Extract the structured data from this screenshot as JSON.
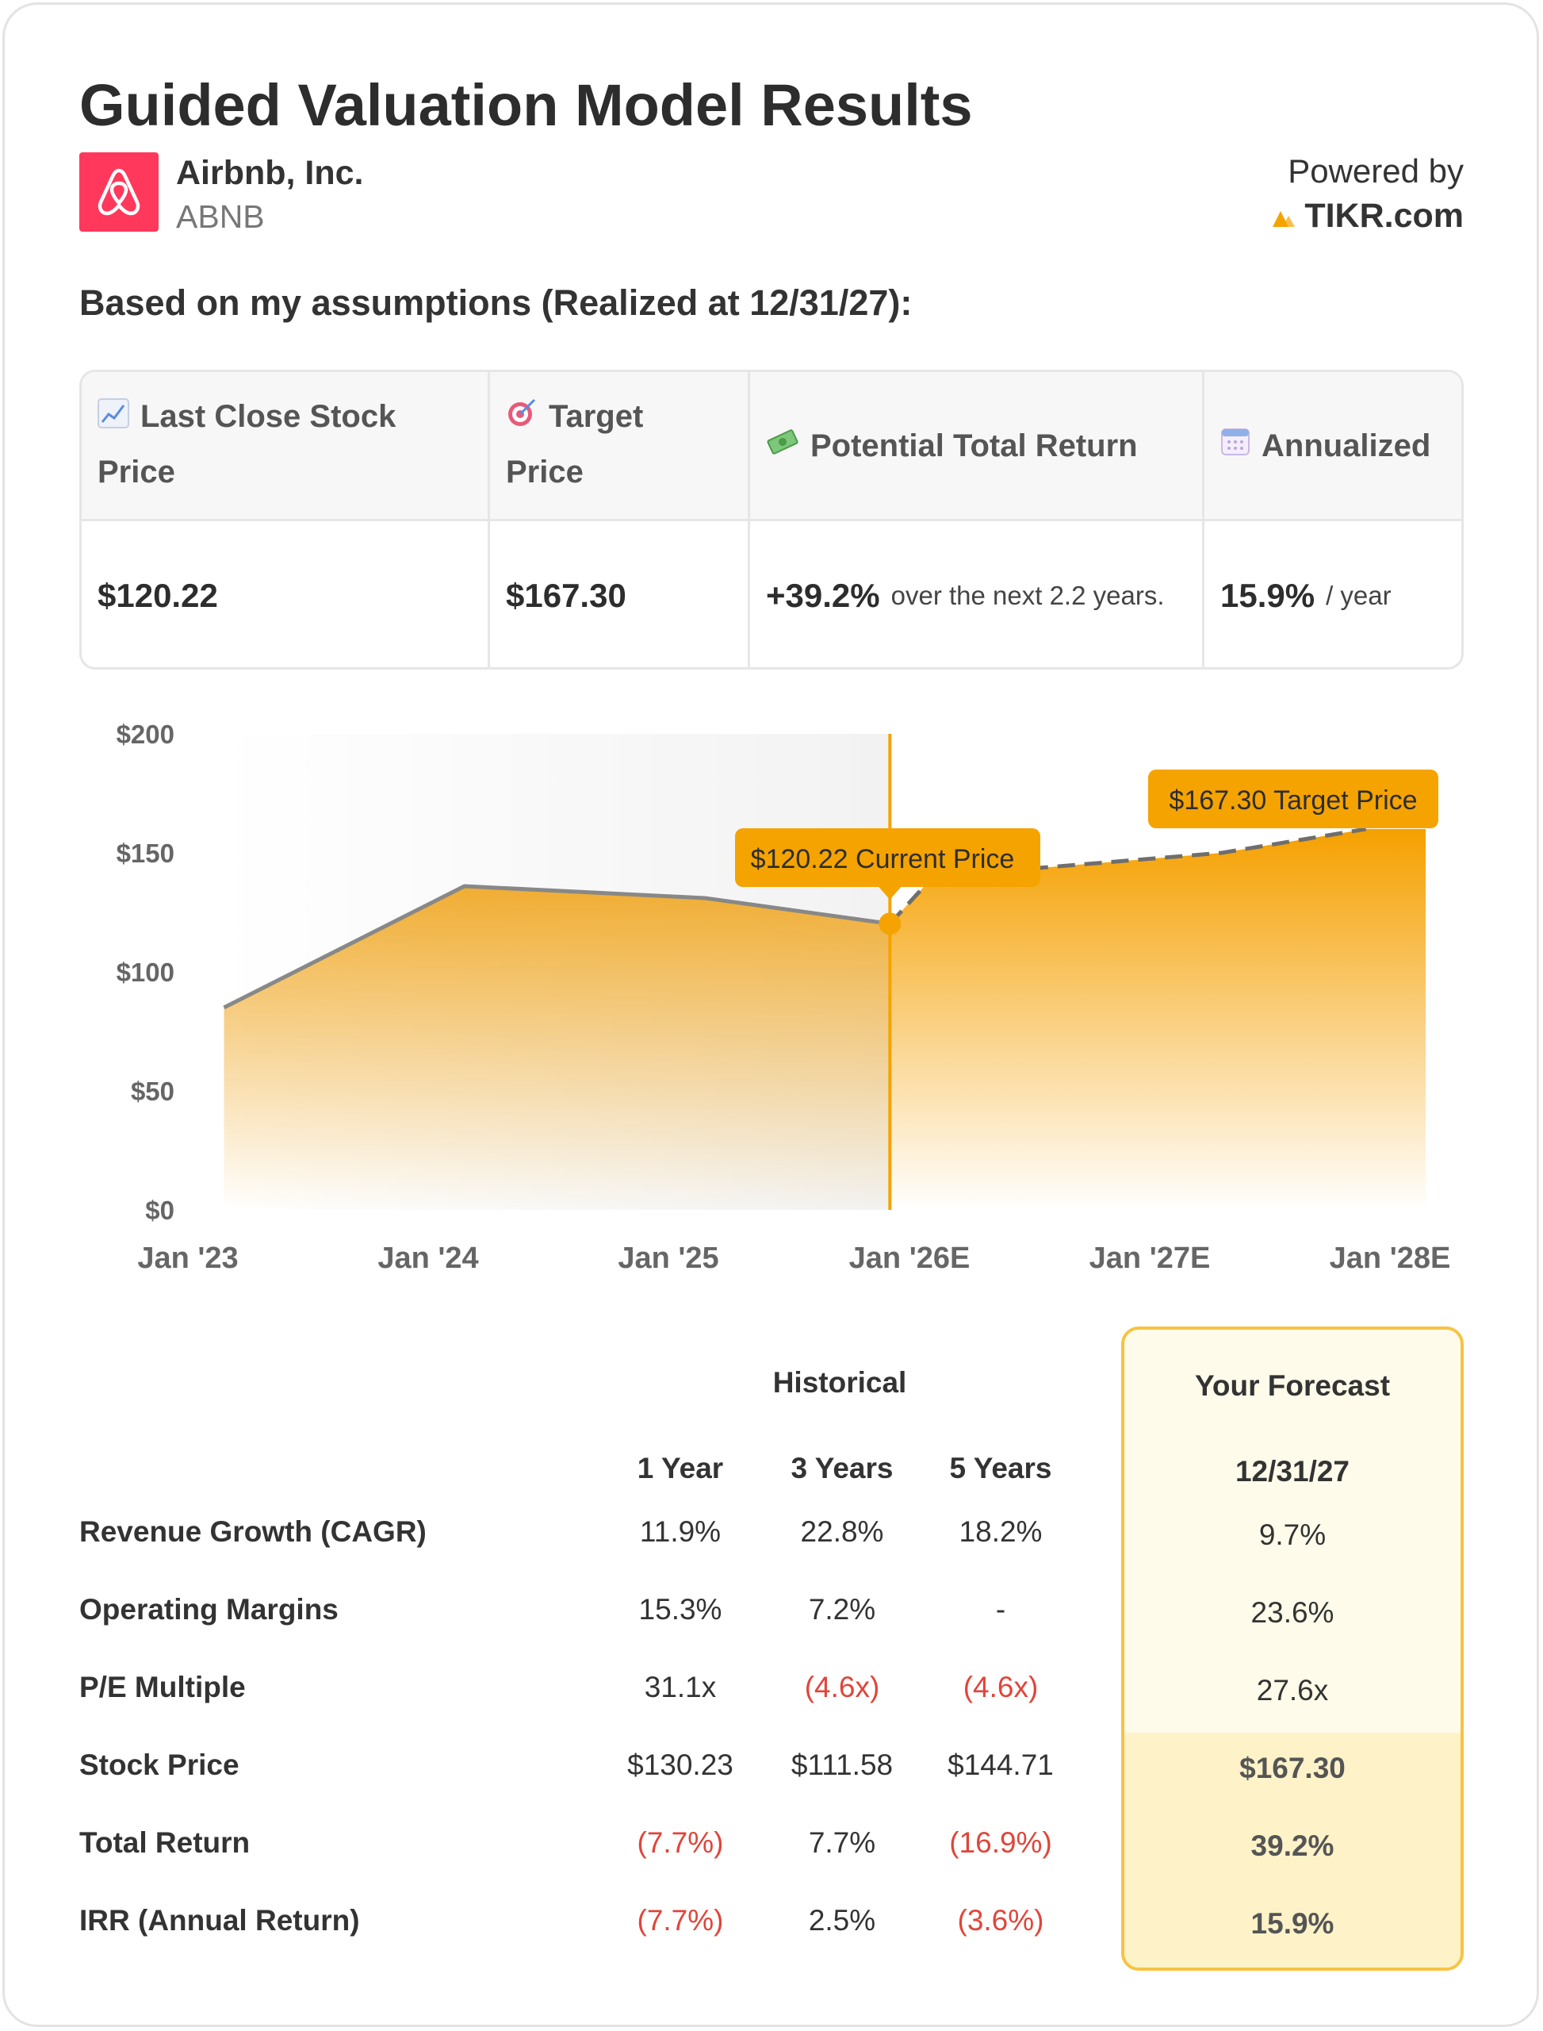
{
  "header": {
    "title": "Guided Valuation Model Results",
    "company": "Airbnb, Inc.",
    "ticker": "ABNB",
    "powered_by": "Powered by",
    "brand": "TIKR.com"
  },
  "assumptions_heading": "Based on my assumptions (Realized at 12/31/27):",
  "stats": {
    "last_close_label_1": "Last Close Stock",
    "last_close_label_2": "Price",
    "target_label_1": "Target",
    "target_label_2": "Price",
    "return_label": "Potential Total Return",
    "annualized_label": "Annualized",
    "last_close": "$120.22",
    "target": "$167.30",
    "total_return": "+39.2%",
    "total_return_note": "over the next 2.2 years.",
    "annualized": "15.9%",
    "annualized_note": "/ year"
  },
  "chart_data": {
    "type": "area",
    "x_ticks": [
      "Jan '23",
      "Jan '24",
      "Jan '25",
      "Jan '26E",
      "Jan '27E",
      "Jan '28E"
    ],
    "y_ticks": [
      "$200",
      "$150",
      "$100",
      "$50",
      "$0"
    ],
    "ylim": [
      0,
      200
    ],
    "series": [
      {
        "x": [
          2023.15,
          2024.15,
          2025.15,
          2025.92
        ],
        "y": [
          85,
          136,
          131,
          120.22
        ],
        "style": "solid"
      },
      {
        "x": [
          2025.92,
          2026.1,
          2027.3,
          2027.9
        ],
        "y": [
          120.22,
          140,
          150,
          160
        ],
        "style": "dashed"
      }
    ],
    "current_x": 2025.92,
    "current_label": "$120.22 Current Price",
    "target_label": "$167.30 Target Price",
    "colors": {
      "accent": "#f5a300",
      "line": "#888888"
    }
  },
  "table": {
    "historical_label": "Historical",
    "forecast_label": "Your Forecast",
    "col_headers": [
      "1 Year",
      "3 Years",
      "5 Years"
    ],
    "forecast_date": "12/31/27",
    "rows": [
      {
        "label": "Revenue Growth (CAGR)",
        "values": [
          "11.9%",
          "22.8%",
          "18.2%"
        ],
        "neg": [
          false,
          false,
          false
        ],
        "forecast": "9.7%"
      },
      {
        "label": "Operating Margins",
        "values": [
          "15.3%",
          "7.2%",
          "-"
        ],
        "neg": [
          false,
          false,
          false
        ],
        "forecast": "23.6%"
      },
      {
        "label": "P/E Multiple",
        "values": [
          "31.1x",
          "(4.6x)",
          "(4.6x)"
        ],
        "neg": [
          false,
          true,
          true
        ],
        "forecast": "27.6x"
      },
      {
        "label": "Stock Price",
        "values": [
          "$130.23",
          "$111.58",
          "$144.71"
        ],
        "neg": [
          false,
          false,
          false
        ],
        "forecast": "$167.30"
      },
      {
        "label": "Total Return",
        "values": [
          "(7.7%)",
          "7.7%",
          "(16.9%)"
        ],
        "neg": [
          true,
          false,
          true
        ],
        "forecast": "39.2%"
      },
      {
        "label": "IRR (Annual Return)",
        "values": [
          "(7.7%)",
          "2.5%",
          "(3.6%)"
        ],
        "neg": [
          true,
          false,
          true
        ],
        "forecast": "15.9%"
      }
    ]
  }
}
